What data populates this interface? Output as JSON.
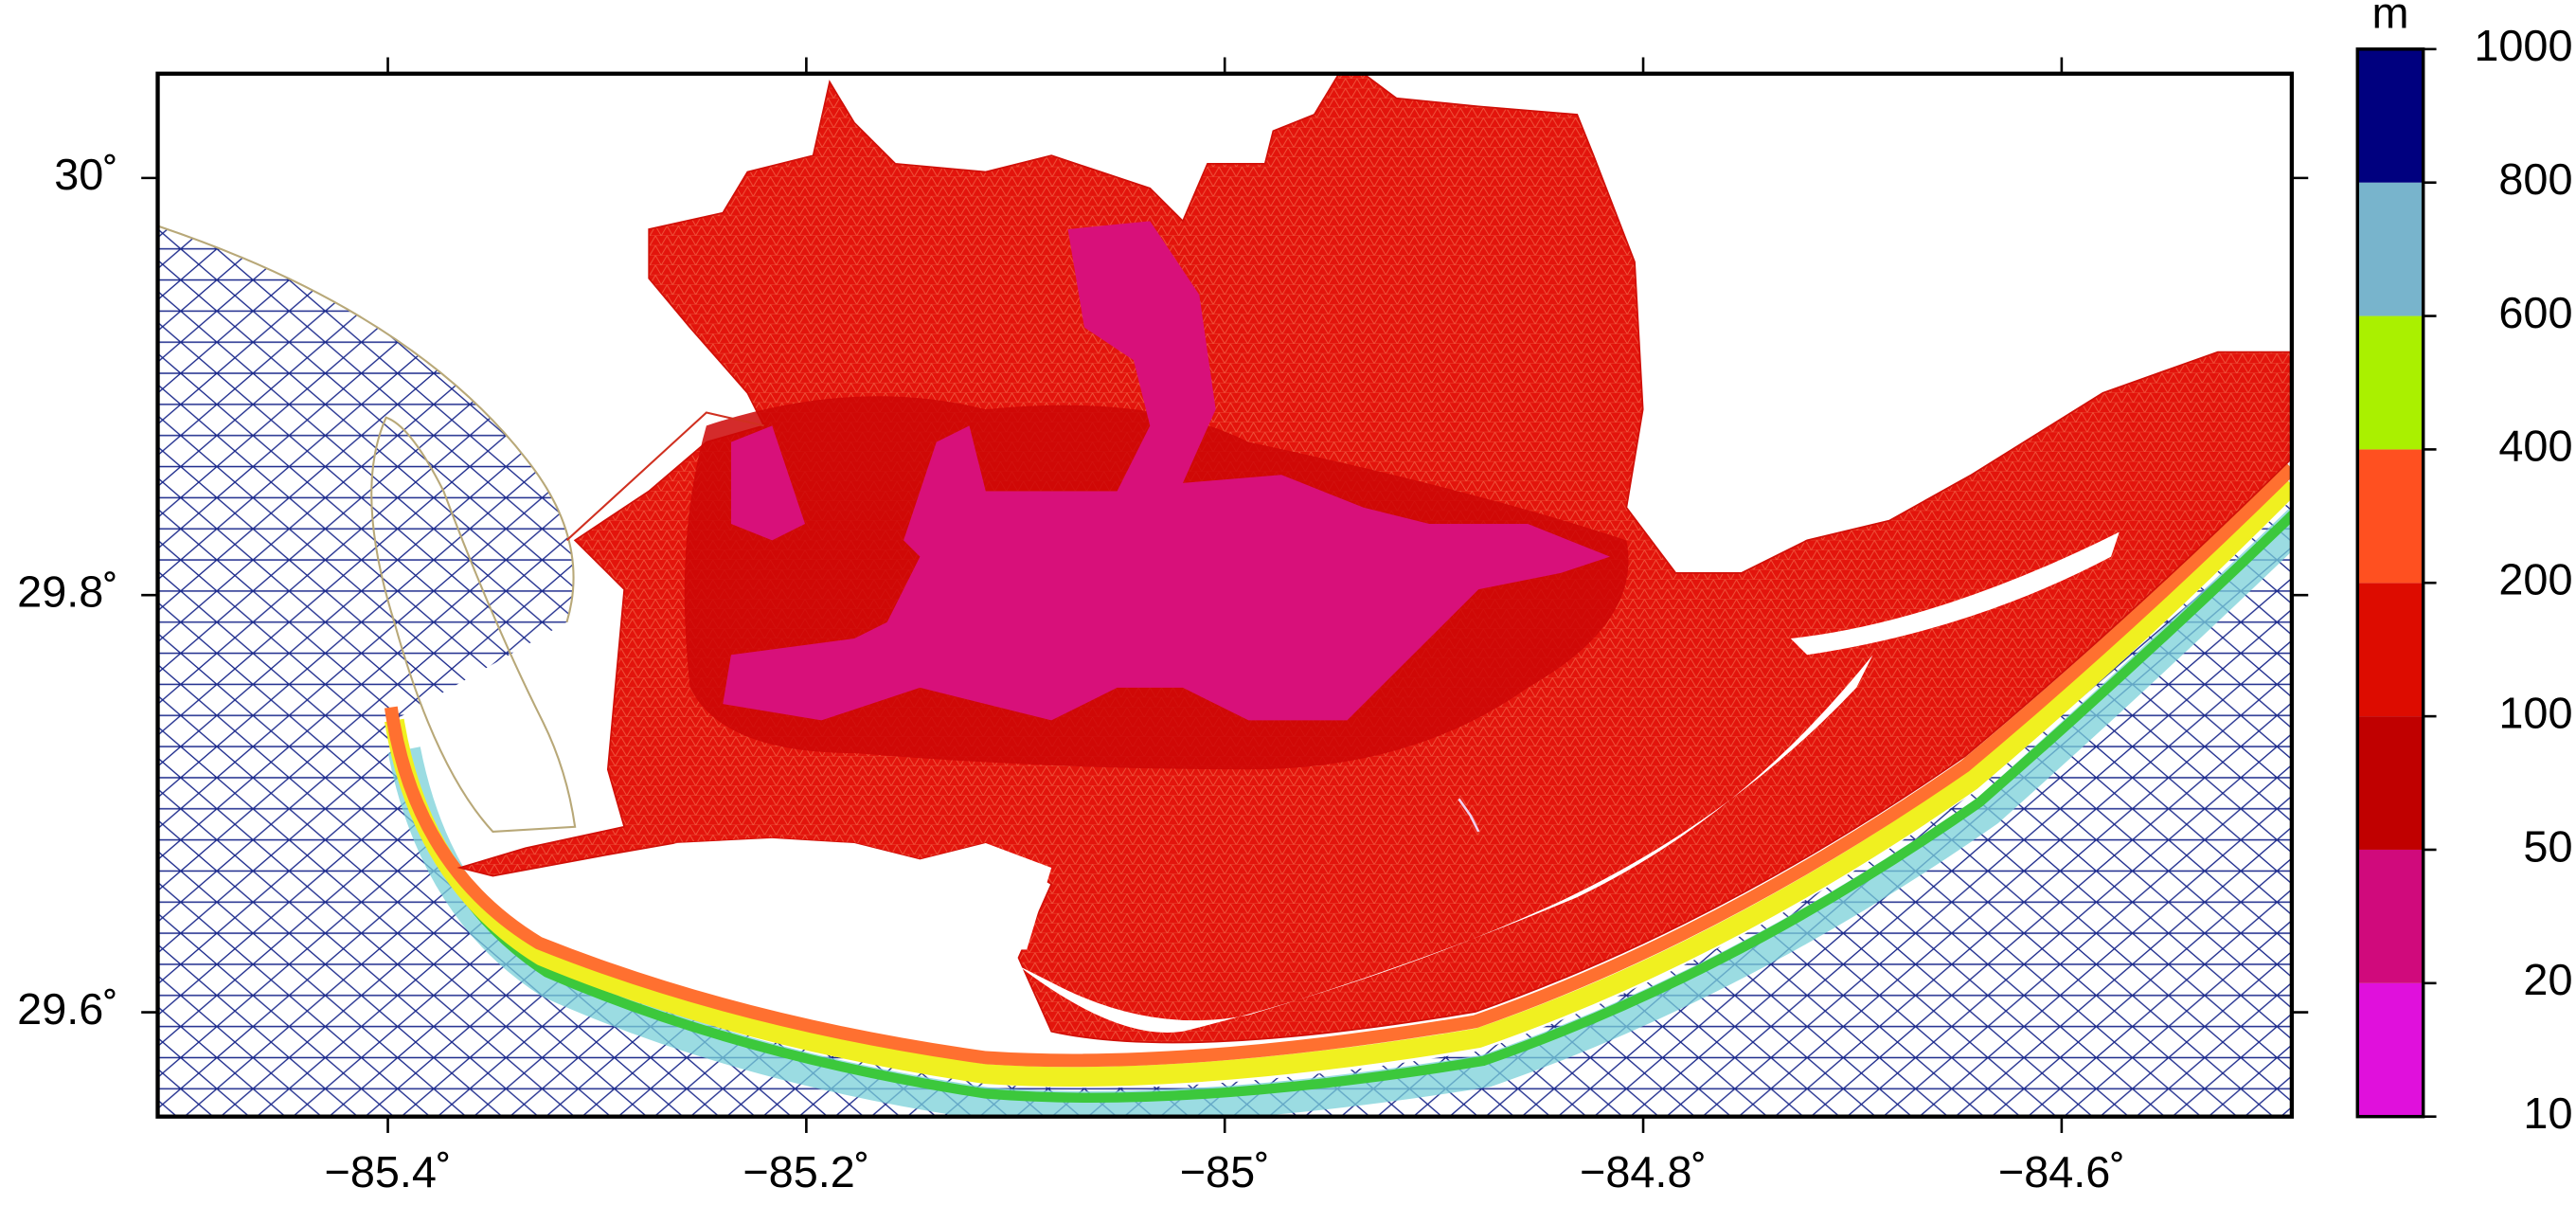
{
  "map": {
    "xaxis": {
      "lim": [
        -85.51,
        -84.49
      ],
      "ticks": [
        {
          "value": -85.4,
          "label": "−85.4˚"
        },
        {
          "value": -85.2,
          "label": "−85.2˚"
        },
        {
          "value": -85,
          "label": "−85˚"
        },
        {
          "value": -84.8,
          "label": "−84.8˚"
        },
        {
          "value": -84.6,
          "label": "−84.6˚"
        }
      ]
    },
    "yaxis": {
      "lim": [
        29.55,
        30.05
      ],
      "ticks": [
        {
          "value": 29.6,
          "label": "29.6˚"
        },
        {
          "value": 29.8,
          "label": "29.8˚"
        },
        {
          "value": 30,
          "label": "30˚"
        }
      ]
    },
    "colorbar": {
      "unit": "m",
      "levels": [
        10,
        20,
        50,
        100,
        200,
        400,
        600,
        800,
        1000
      ],
      "colors": [
        "#e010dc",
        "#d00a7c",
        "#c00000",
        "#dd0c00",
        "#ff5020",
        "#aaf000",
        "#78b4cc",
        "#00007f"
      ]
    }
  }
}
